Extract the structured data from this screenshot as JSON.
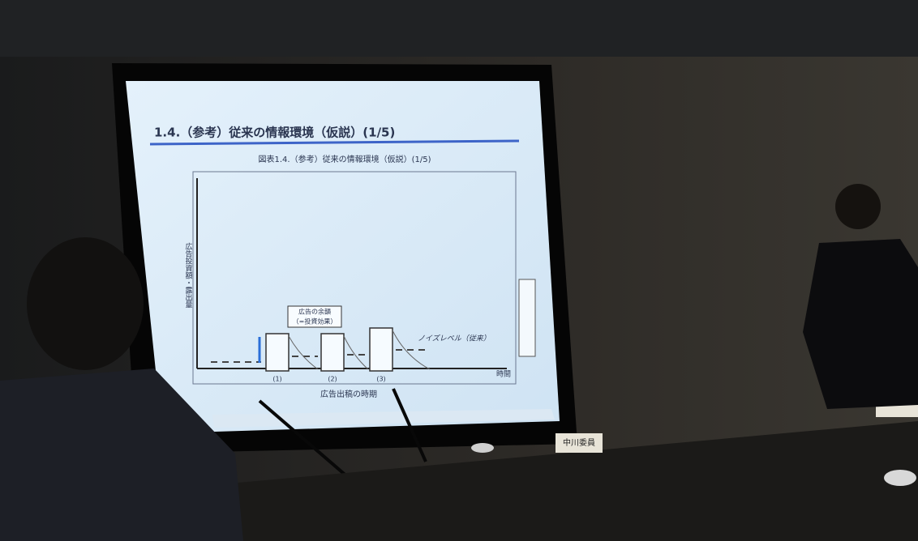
{
  "slide": {
    "title": "1.4.（参考）従来の情報環境（仮説）(1/5)",
    "figure_title": "図表1.4.（参考）従来の情報環境（仮説）(1/5)",
    "y_axis_label": "広告投資額・露出量",
    "x_axis_label": "広告出稿の時期",
    "x_end_label": "時間",
    "periods": [
      "(1)",
      "(2)",
      "(3)"
    ],
    "callout": [
      "広告の余韻",
      "（=投資効果）"
    ],
    "noise_label": "ノイズレベル（従来）"
  },
  "nameplates": [
    "中川委員"
  ]
}
